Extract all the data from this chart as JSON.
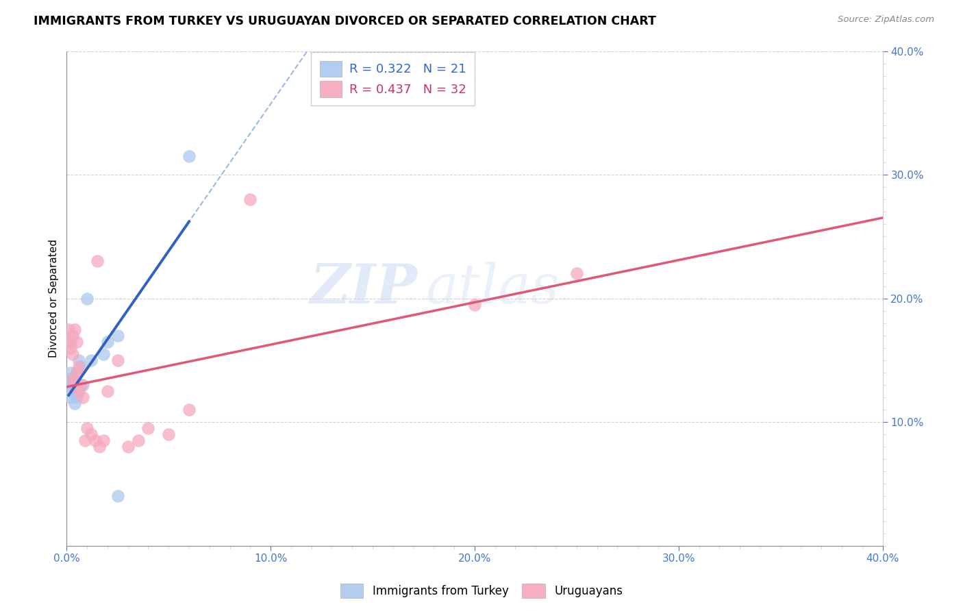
{
  "title": "IMMIGRANTS FROM TURKEY VS URUGUAYAN DIVORCED OR SEPARATED CORRELATION CHART",
  "source": "Source: ZipAtlas.com",
  "ylabel": "Divorced or Separated",
  "xlim": [
    0.0,
    0.4
  ],
  "ylim": [
    0.0,
    0.4
  ],
  "xticks_major": [
    0.0,
    0.1,
    0.2,
    0.3,
    0.4
  ],
  "yticks_major": [
    0.1,
    0.2,
    0.3,
    0.4
  ],
  "xticklabels": [
    "0.0%",
    "",
    "",
    "",
    "",
    "",
    "",
    "",
    "",
    "",
    "10.0%",
    "",
    "",
    "",
    "",
    "",
    "",
    "",
    "",
    "",
    "20.0%",
    "",
    "",
    "",
    "",
    "",
    "",
    "",
    "",
    "",
    "30.0%",
    "",
    "",
    "",
    "",
    "",
    "",
    "",
    "",
    "",
    "40.0%"
  ],
  "yticklabels_right": [
    "10.0%",
    "20.0%",
    "30.0%",
    "40.0%"
  ],
  "legend_labels": [
    "Immigrants from Turkey",
    "Uruguayans"
  ],
  "R_blue": 0.322,
  "N_blue": 21,
  "R_pink": 0.437,
  "N_pink": 32,
  "color_blue": "#aac8ee",
  "color_pink": "#f5a8bc",
  "line_blue_solid": "#3060c0",
  "line_blue_dashed": "#88aedd",
  "line_pink_solid": "#e05878",
  "watermark_zip": "ZIP",
  "watermark_atlas": "atlas",
  "blue_points_x": [
    0.001,
    0.001,
    0.001,
    0.002,
    0.002,
    0.003,
    0.003,
    0.004,
    0.004,
    0.005,
    0.005,
    0.006,
    0.007,
    0.008,
    0.01,
    0.012,
    0.018,
    0.02,
    0.025,
    0.06,
    0.025
  ],
  "blue_points_y": [
    0.125,
    0.135,
    0.13,
    0.14,
    0.12,
    0.13,
    0.135,
    0.125,
    0.115,
    0.14,
    0.12,
    0.15,
    0.145,
    0.13,
    0.2,
    0.15,
    0.155,
    0.165,
    0.17,
    0.315,
    0.04
  ],
  "pink_points_x": [
    0.001,
    0.001,
    0.002,
    0.002,
    0.003,
    0.003,
    0.003,
    0.004,
    0.004,
    0.005,
    0.005,
    0.006,
    0.006,
    0.007,
    0.008,
    0.009,
    0.01,
    0.012,
    0.014,
    0.015,
    0.016,
    0.018,
    0.02,
    0.025,
    0.03,
    0.035,
    0.04,
    0.05,
    0.06,
    0.09,
    0.2,
    0.25
  ],
  "pink_points_y": [
    0.165,
    0.175,
    0.16,
    0.165,
    0.135,
    0.155,
    0.17,
    0.13,
    0.175,
    0.14,
    0.165,
    0.125,
    0.145,
    0.13,
    0.12,
    0.085,
    0.095,
    0.09,
    0.085,
    0.23,
    0.08,
    0.085,
    0.125,
    0.15,
    0.08,
    0.085,
    0.095,
    0.09,
    0.11,
    0.28,
    0.195,
    0.22
  ]
}
